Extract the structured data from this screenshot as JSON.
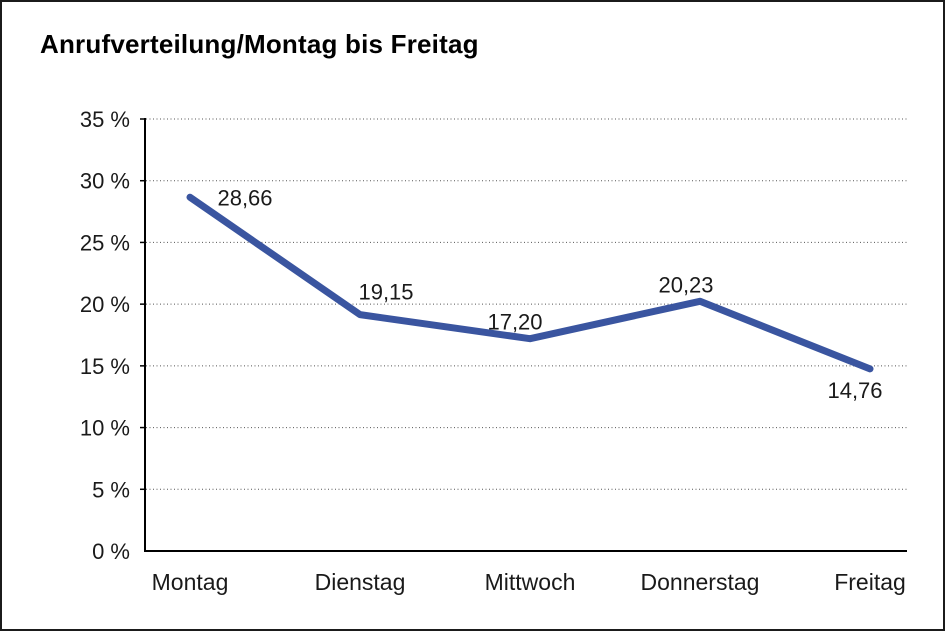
{
  "page": {
    "background": "#ffffff",
    "frame_color": "#1b1b1b"
  },
  "chart_data": {
    "type": "line",
    "title": "Anrufverteilung/Montag bis Freitag",
    "categories": [
      "Montag",
      "Dienstag",
      "Mittwoch",
      "Donnerstag",
      "Freitag"
    ],
    "series": [
      {
        "name": "Anrufverteilung",
        "values": [
          28.66,
          19.15,
          17.2,
          20.23,
          14.76
        ]
      }
    ],
    "value_labels": [
      "28,66",
      "19,15",
      "17,20",
      "20,23",
      "14,76"
    ],
    "y_ticks": [
      "0 %",
      "5 %",
      "10 %",
      "15 %",
      "20 %",
      "25 %",
      "30 %",
      "35 %"
    ],
    "ylim": [
      0,
      35
    ],
    "y_tick_step": 5,
    "y_unit": "%",
    "xlabel": "",
    "ylabel": "",
    "grid": "dotted-horizontal",
    "legend": "none",
    "line_color": "#3A55A0",
    "axis_color": "#000000",
    "gridline_color": "#555555",
    "text_color": "#1a1a1a"
  }
}
